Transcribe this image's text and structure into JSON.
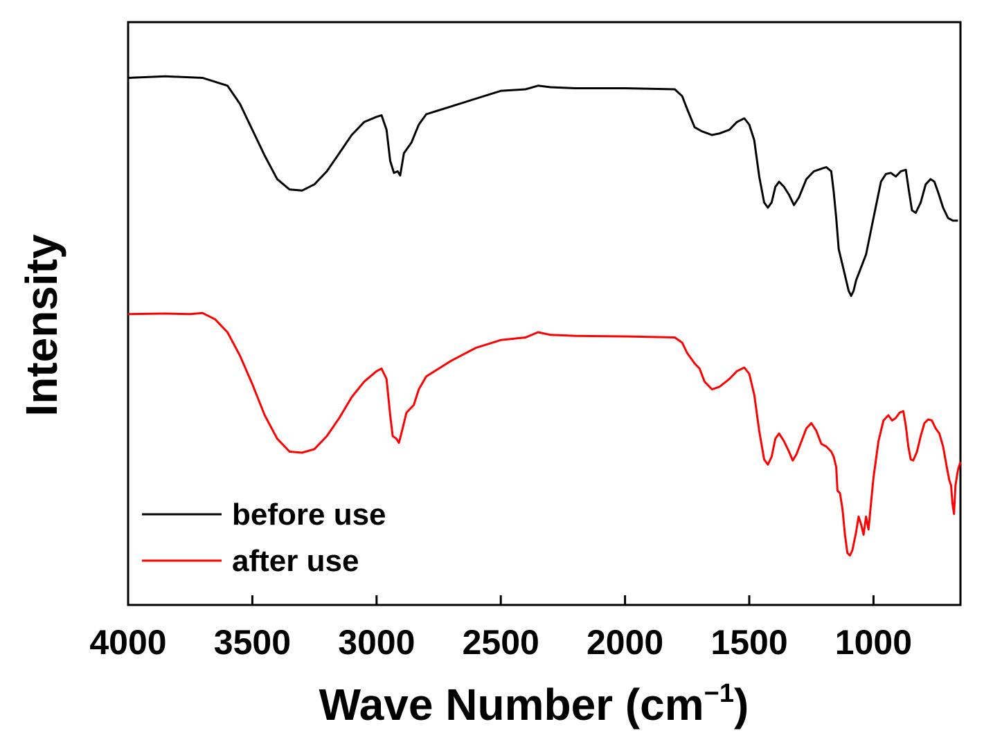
{
  "chart_data": {
    "type": "line",
    "title": "",
    "xlabel": "Wave Number (cm⁻¹)",
    "xlabel_main": "Wave Number (cm",
    "xlabel_sup": "−1",
    "xlabel_close": ")",
    "ylabel": "Intensity",
    "xlim": [
      4000,
      650
    ],
    "ylim": [
      0,
      100
    ],
    "x_inverted": true,
    "y_ticks_shown": false,
    "grid": false,
    "legend_position": "bottom-left",
    "xticks": [
      "4000",
      "3500",
      "3000",
      "2500",
      "2000",
      "1500",
      "1000"
    ],
    "xtick_values": [
      4000,
      3500,
      3000,
      2500,
      2000,
      1500,
      1000
    ],
    "series": [
      {
        "name": "before use",
        "color": "#000000",
        "points": [
          [
            4000,
            97
          ],
          [
            3850,
            97.3
          ],
          [
            3700,
            97
          ],
          [
            3600,
            95.5
          ],
          [
            3550,
            92
          ],
          [
            3500,
            87
          ],
          [
            3450,
            82
          ],
          [
            3400,
            77.5
          ],
          [
            3350,
            75.5
          ],
          [
            3300,
            75.3
          ],
          [
            3250,
            76.5
          ],
          [
            3200,
            79
          ],
          [
            3150,
            82.5
          ],
          [
            3100,
            86
          ],
          [
            3050,
            88.5
          ],
          [
            3000,
            89.5
          ],
          [
            2980,
            89.8
          ],
          [
            2960,
            87
          ],
          [
            2945,
            81
          ],
          [
            2930,
            78.7
          ],
          [
            2915,
            79
          ],
          [
            2905,
            78.2
          ],
          [
            2890,
            82.5
          ],
          [
            2860,
            84.5
          ],
          [
            2830,
            88
          ],
          [
            2800,
            90
          ],
          [
            2700,
            91.5
          ],
          [
            2600,
            93
          ],
          [
            2500,
            94.5
          ],
          [
            2400,
            94.8
          ],
          [
            2350,
            95.5
          ],
          [
            2300,
            95.2
          ],
          [
            2200,
            95
          ],
          [
            2000,
            95
          ],
          [
            1800,
            94.8
          ],
          [
            1770,
            93.5
          ],
          [
            1750,
            91
          ],
          [
            1720,
            87.5
          ],
          [
            1690,
            86.7
          ],
          [
            1650,
            86
          ],
          [
            1620,
            86.3
          ],
          [
            1580,
            87
          ],
          [
            1550,
            88.5
          ],
          [
            1520,
            89.2
          ],
          [
            1500,
            88
          ],
          [
            1480,
            85
          ],
          [
            1460,
            78
          ],
          [
            1440,
            73
          ],
          [
            1425,
            72
          ],
          [
            1410,
            73
          ],
          [
            1395,
            76
          ],
          [
            1380,
            77
          ],
          [
            1360,
            76
          ],
          [
            1340,
            74.5
          ],
          [
            1320,
            72.5
          ],
          [
            1300,
            74
          ],
          [
            1270,
            77.5
          ],
          [
            1240,
            79
          ],
          [
            1210,
            79.5
          ],
          [
            1190,
            79.8
          ],
          [
            1170,
            79
          ],
          [
            1160,
            75
          ],
          [
            1150,
            70
          ],
          [
            1140,
            64
          ],
          [
            1120,
            60
          ],
          [
            1100,
            56
          ],
          [
            1090,
            55
          ],
          [
            1080,
            56
          ],
          [
            1070,
            58
          ],
          [
            1050,
            60.5
          ],
          [
            1030,
            63
          ],
          [
            1000,
            70
          ],
          [
            970,
            77
          ],
          [
            950,
            78.5
          ],
          [
            930,
            78.7
          ],
          [
            910,
            78
          ],
          [
            890,
            79
          ],
          [
            870,
            79.3
          ],
          [
            860,
            76
          ],
          [
            845,
            71.5
          ],
          [
            830,
            71
          ],
          [
            810,
            73
          ],
          [
            790,
            76.5
          ],
          [
            770,
            77.5
          ],
          [
            755,
            77
          ],
          [
            740,
            75
          ],
          [
            720,
            72
          ],
          [
            700,
            70
          ],
          [
            680,
            69.5
          ],
          [
            660,
            69.5
          ]
        ]
      },
      {
        "name": "after use",
        "color": "#ff0000",
        "points": [
          [
            4000,
            51.5
          ],
          [
            3850,
            51.6
          ],
          [
            3750,
            51.5
          ],
          [
            3700,
            51.7
          ],
          [
            3650,
            50.5
          ],
          [
            3600,
            48
          ],
          [
            3550,
            43.5
          ],
          [
            3500,
            38
          ],
          [
            3450,
            32
          ],
          [
            3400,
            27.5
          ],
          [
            3350,
            25
          ],
          [
            3300,
            24.8
          ],
          [
            3250,
            25.5
          ],
          [
            3200,
            28
          ],
          [
            3150,
            31.5
          ],
          [
            3100,
            35.5
          ],
          [
            3050,
            38.5
          ],
          [
            3000,
            40.5
          ],
          [
            2980,
            41
          ],
          [
            2960,
            39
          ],
          [
            2945,
            32
          ],
          [
            2935,
            28
          ],
          [
            2920,
            27.5
          ],
          [
            2910,
            26.7
          ],
          [
            2895,
            29.5
          ],
          [
            2880,
            32.5
          ],
          [
            2850,
            34
          ],
          [
            2830,
            37
          ],
          [
            2800,
            39.5
          ],
          [
            2700,
            42.5
          ],
          [
            2600,
            45
          ],
          [
            2500,
            46.5
          ],
          [
            2400,
            47
          ],
          [
            2350,
            48
          ],
          [
            2300,
            47.5
          ],
          [
            2200,
            47.3
          ],
          [
            2000,
            47.2
          ],
          [
            1800,
            47
          ],
          [
            1770,
            46
          ],
          [
            1750,
            44
          ],
          [
            1720,
            42
          ],
          [
            1700,
            41
          ],
          [
            1680,
            38.5
          ],
          [
            1650,
            37
          ],
          [
            1620,
            37.5
          ],
          [
            1580,
            39
          ],
          [
            1550,
            40.5
          ],
          [
            1520,
            41.2
          ],
          [
            1500,
            40
          ],
          [
            1480,
            36
          ],
          [
            1460,
            29
          ],
          [
            1440,
            23.5
          ],
          [
            1425,
            22.5
          ],
          [
            1410,
            24
          ],
          [
            1395,
            27.5
          ],
          [
            1380,
            28.5
          ],
          [
            1360,
            27
          ],
          [
            1340,
            25
          ],
          [
            1325,
            23.3
          ],
          [
            1310,
            24.5
          ],
          [
            1290,
            27
          ],
          [
            1270,
            29.5
          ],
          [
            1250,
            30.5
          ],
          [
            1230,
            29
          ],
          [
            1210,
            26.5
          ],
          [
            1190,
            26
          ],
          [
            1170,
            25
          ],
          [
            1160,
            24
          ],
          [
            1150,
            22
          ],
          [
            1145,
            17.5
          ],
          [
            1135,
            17
          ],
          [
            1125,
            14
          ],
          [
            1115,
            9
          ],
          [
            1105,
            5.5
          ],
          [
            1095,
            5
          ],
          [
            1085,
            6
          ],
          [
            1070,
            9.5
          ],
          [
            1060,
            12.5
          ],
          [
            1050,
            11
          ],
          [
            1040,
            9
          ],
          [
            1030,
            12.5
          ],
          [
            1020,
            10
          ],
          [
            1010,
            15
          ],
          [
            1000,
            20
          ],
          [
            980,
            27
          ],
          [
            960,
            31
          ],
          [
            940,
            32
          ],
          [
            925,
            31
          ],
          [
            910,
            31.5
          ],
          [
            895,
            32.5
          ],
          [
            880,
            32.8
          ],
          [
            870,
            30
          ],
          [
            860,
            26
          ],
          [
            850,
            23.5
          ],
          [
            840,
            23.3
          ],
          [
            825,
            25
          ],
          [
            810,
            28
          ],
          [
            795,
            30.5
          ],
          [
            780,
            31.2
          ],
          [
            765,
            31
          ],
          [
            750,
            29.5
          ],
          [
            735,
            28.5
          ],
          [
            720,
            26
          ],
          [
            705,
            22
          ],
          [
            695,
            19.5
          ],
          [
            688,
            18.5
          ],
          [
            682,
            15
          ],
          [
            676,
            13
          ],
          [
            670,
            18.5
          ],
          [
            660,
            21.5
          ],
          [
            650,
            23
          ]
        ]
      }
    ]
  }
}
